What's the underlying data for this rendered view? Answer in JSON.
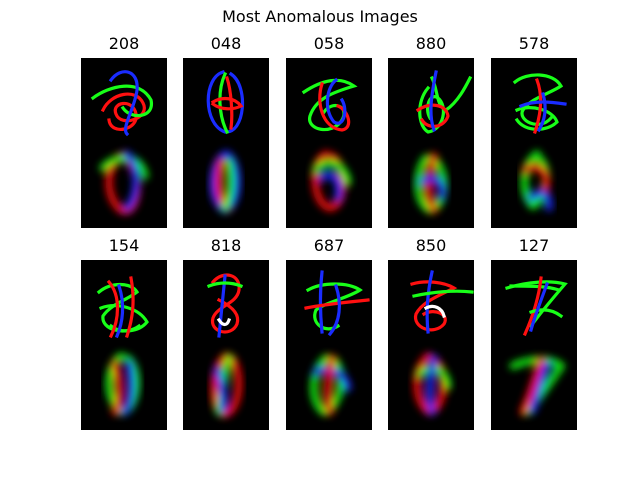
{
  "title": "Most Anomalous Images",
  "colors": {
    "background": "#ffffff",
    "image_background": "#000000",
    "red": "#ff1010",
    "green": "#18ff18",
    "blue": "#1a2cff",
    "white": "#ffffff"
  },
  "images": [
    {
      "label": "208"
    },
    {
      "label": "048"
    },
    {
      "label": "058"
    },
    {
      "label": "880"
    },
    {
      "label": "578"
    },
    {
      "label": "154"
    },
    {
      "label": "818"
    },
    {
      "label": "687"
    },
    {
      "label": "850"
    },
    {
      "label": "127"
    }
  ]
}
